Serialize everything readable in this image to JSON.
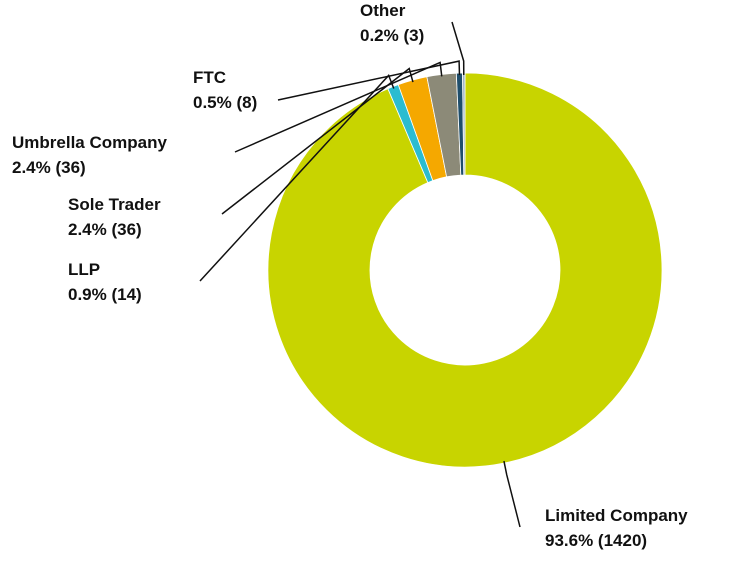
{
  "chart_data": {
    "type": "donut",
    "categories": [
      "Limited Company",
      "LLP",
      "Sole Trader",
      "Umbrella Company",
      "FTC",
      "Other"
    ],
    "values": [
      93.6,
      0.9,
      2.4,
      2.4,
      0.5,
      0.2
    ],
    "value_labels": [
      "93.6% (1420)",
      "0.9% (14)",
      "2.4% (36)",
      "2.4% (36)",
      "0.5% (8)",
      "0.2% (3)"
    ],
    "colors": [
      "#c8d400",
      "#2bbcd0",
      "#f5a800",
      "#8c8a78",
      "#1f4e6b",
      "#9fb3c8"
    ]
  }
}
